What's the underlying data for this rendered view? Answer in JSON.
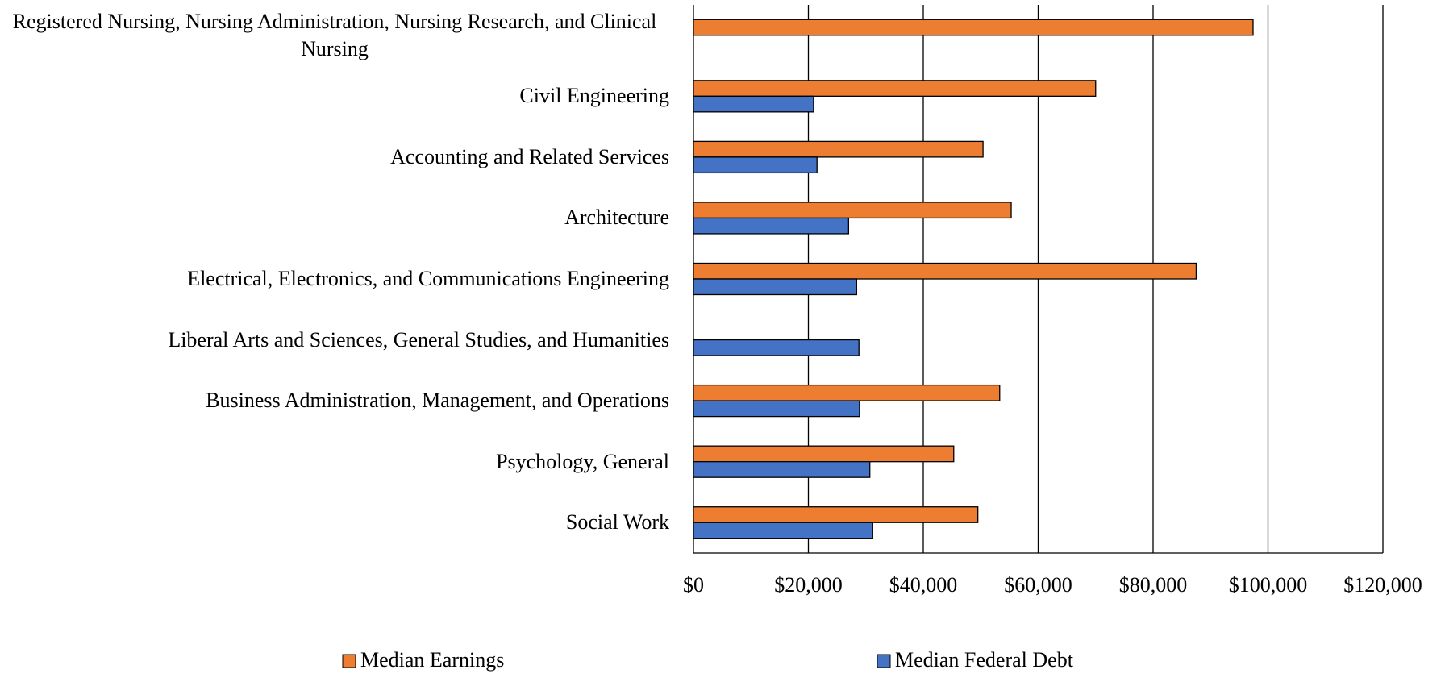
{
  "chart_data": {
    "type": "bar",
    "orientation": "horizontal",
    "categories": [
      "Registered Nursing, Nursing Administration, Nursing Research, and Clinical Nursing",
      "Civil Engineering",
      "Accounting and Related Services",
      "Architecture",
      "Electrical, Electronics, and Communications Engineering",
      "Liberal Arts and Sciences, General Studies, and Humanities",
      "Business Administration, Management, and Operations",
      "Psychology, General",
      "Social Work"
    ],
    "series": [
      {
        "name": "Median Earnings",
        "color": "#ed7d31",
        "values": [
          97400,
          70000,
          50400,
          55300,
          87500,
          null,
          53300,
          45300,
          49500
        ]
      },
      {
        "name": "Median Federal Debt",
        "color": "#4472c4",
        "values": [
          null,
          20900,
          21500,
          27000,
          28400,
          28800,
          28900,
          30700,
          31200
        ]
      }
    ],
    "xlim": [
      0,
      120000
    ],
    "xticks": [
      {
        "value": 0,
        "label": "$0"
      },
      {
        "value": 20000,
        "label": "$20,000"
      },
      {
        "value": 40000,
        "label": "$40,000"
      },
      {
        "value": 60000,
        "label": "$60,000"
      },
      {
        "value": 80000,
        "label": "$80,000"
      },
      {
        "value": 100000,
        "label": "$100,000"
      },
      {
        "value": 120000,
        "label": "$120,000"
      }
    ],
    "grid": true,
    "legend": "bottom"
  }
}
